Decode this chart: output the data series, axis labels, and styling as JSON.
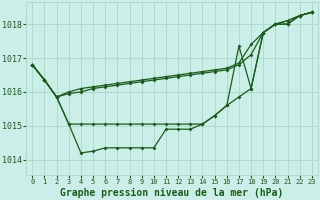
{
  "background_color": "#cceee8",
  "plot_bg_color": "#cceee8",
  "line_color": "#1a5c1a",
  "grid_color": "#aaddcc",
  "title": "Graphe pression niveau de la mer (hPa)",
  "xlim": [
    -0.5,
    23.5
  ],
  "ylim": [
    1013.55,
    1018.65
  ],
  "yticks": [
    1014,
    1015,
    1016,
    1017,
    1018
  ],
  "xtick_labels": [
    "0",
    "1",
    "2",
    "3",
    "4",
    "5",
    "6",
    "7",
    "8",
    "9",
    "10",
    "11",
    "12",
    "13",
    "14",
    "15",
    "16",
    "17",
    "18",
    "19",
    "20",
    "21",
    "22",
    "23"
  ],
  "series": [
    [
      1016.8,
      1016.35,
      1015.85,
      1015.05,
      1014.2,
      1014.25,
      1014.35,
      1014.35,
      1014.35,
      1014.35,
      1014.35,
      1014.9,
      1014.9,
      1014.9,
      1015.05,
      1015.3,
      1015.6,
      1015.85,
      1016.1,
      1017.75,
      1018.0,
      1018.0,
      1018.25,
      1018.35
    ],
    [
      1016.8,
      1016.35,
      1015.85,
      1016.0,
      1016.1,
      1016.15,
      1016.2,
      1016.25,
      1016.3,
      1016.35,
      1016.4,
      1016.45,
      1016.5,
      1016.55,
      1016.6,
      1016.65,
      1016.7,
      1016.85,
      1017.4,
      1017.75,
      1018.0,
      1018.1,
      1018.25,
      1018.35
    ],
    [
      1016.8,
      1016.35,
      1015.85,
      1015.95,
      1016.0,
      1016.1,
      1016.15,
      1016.2,
      1016.25,
      1016.3,
      1016.35,
      1016.4,
      1016.45,
      1016.5,
      1016.55,
      1016.6,
      1016.65,
      1016.8,
      1017.1,
      1017.75,
      1018.0,
      1018.1,
      1018.25,
      1018.35
    ],
    [
      1016.8,
      1016.35,
      1015.85,
      1015.05,
      1015.05,
      1015.05,
      1015.05,
      1015.05,
      1015.05,
      1015.05,
      1015.05,
      1015.05,
      1015.05,
      1015.05,
      1015.05,
      1015.3,
      1015.6,
      1017.35,
      1016.1,
      1017.75,
      1018.0,
      1018.0,
      1018.25,
      1018.35
    ]
  ]
}
